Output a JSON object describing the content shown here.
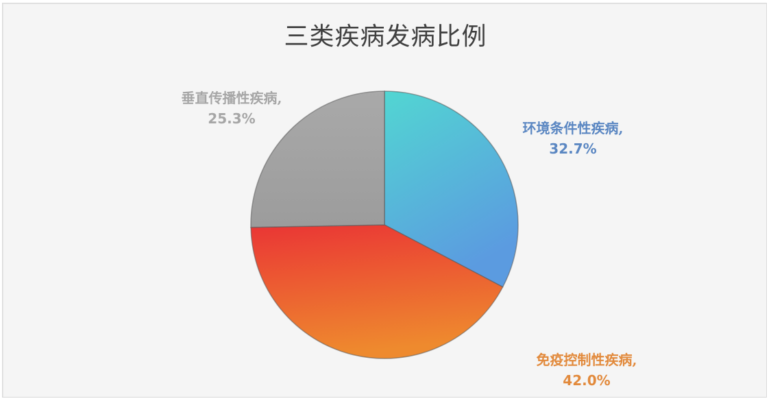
{
  "chart_data": {
    "type": "pie",
    "title": "三类疾病发病比例",
    "categories": [
      "环境条件性疾病",
      "免疫控制性疾病",
      "垂直传播性疾病"
    ],
    "values": [
      32.7,
      42.0,
      25.3
    ],
    "unit": "%",
    "colors": [
      "#4fc9d0",
      "#ec5a33",
      "#a5a5a5"
    ],
    "data_labels": [
      {
        "name": "环境条件性疾病,",
        "value": "32.7%",
        "color": "#5b87c2"
      },
      {
        "name": "免疫控制性疾病,",
        "value": "42.0%",
        "color": "#e28a3c"
      },
      {
        "name": "垂直传播性疾病,",
        "value": "25.3%",
        "color": "#a6a6a6"
      }
    ],
    "legend": "none",
    "start_angle_deg": 0,
    "direction": "clockwise"
  }
}
